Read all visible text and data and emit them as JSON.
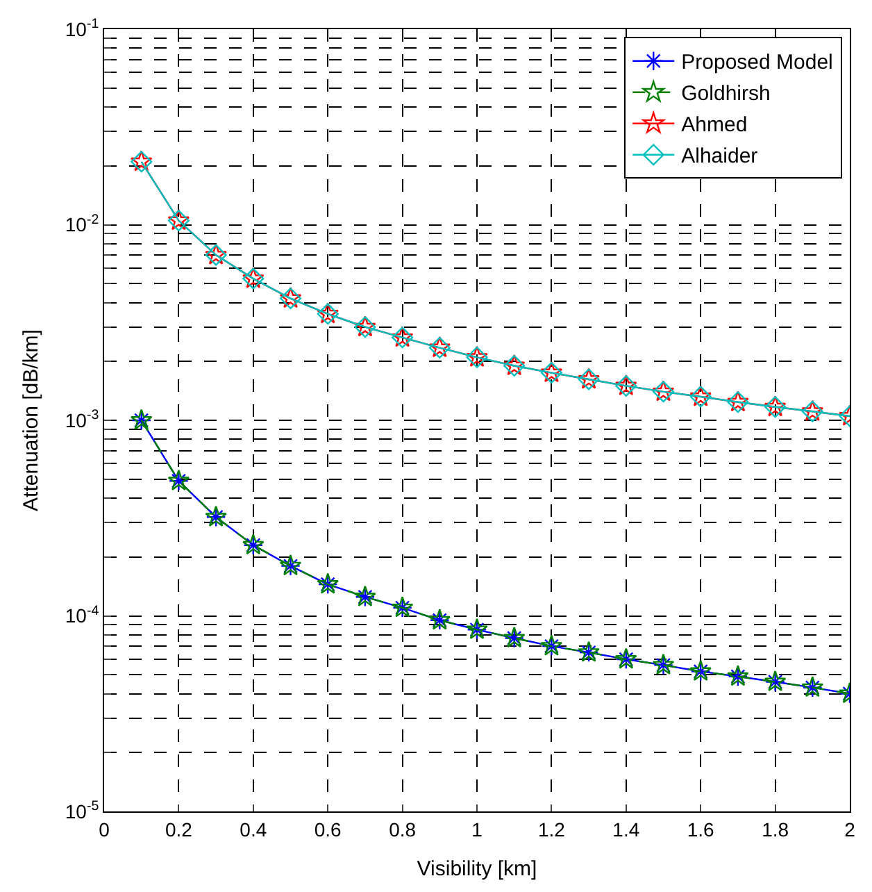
{
  "chart_data": {
    "type": "line",
    "xlabel": "Visibility [km]",
    "ylabel": "Attenuation [dB/km]",
    "log": "y",
    "x": [
      0.1,
      0.2,
      0.3,
      0.4,
      0.5,
      0.6,
      0.7,
      0.8,
      0.9,
      1.0,
      1.1,
      1.2,
      1.3,
      1.4,
      1.5,
      1.6,
      1.7,
      1.8,
      1.9,
      2.0
    ],
    "series": [
      {
        "name": "Proposed Model",
        "color": "#0000ff",
        "marker": "cross",
        "line_style": "solid",
        "values": [
          0.001,
          0.00049,
          0.00032,
          0.00023,
          0.00018,
          0.000145,
          0.000125,
          0.00011,
          9.5e-05,
          8.5e-05,
          7.7e-05,
          7e-05,
          6.5e-05,
          6e-05,
          5.6e-05,
          5.2e-05,
          4.9e-05,
          4.6e-05,
          4.3e-05,
          4e-05
        ]
      },
      {
        "name": "Goldhirsh",
        "color": "#008000",
        "marker": "star",
        "line_style": "dashed",
        "values": [
          0.001,
          0.00049,
          0.00032,
          0.00023,
          0.00018,
          0.000145,
          0.000125,
          0.00011,
          9.5e-05,
          8.5e-05,
          7.7e-05,
          7e-05,
          6.5e-05,
          6e-05,
          5.6e-05,
          5.2e-05,
          4.9e-05,
          4.6e-05,
          4.3e-05,
          4e-05
        ]
      },
      {
        "name": "Ahmed",
        "color": "#ff0000",
        "marker": "star",
        "line_style": "solid",
        "values": [
          0.021,
          0.0105,
          0.007,
          0.0053,
          0.0042,
          0.0035,
          0.003,
          0.00265,
          0.00235,
          0.0021,
          0.0019,
          0.00175,
          0.00162,
          0.0015,
          0.0014,
          0.00132,
          0.00124,
          0.00117,
          0.00111,
          0.00105
        ]
      },
      {
        "name": "Alhaider",
        "color": "#00bfbf",
        "marker": "diamond",
        "line_style": "solid",
        "values": [
          0.021,
          0.0105,
          0.007,
          0.0053,
          0.0042,
          0.0035,
          0.003,
          0.00265,
          0.00235,
          0.0021,
          0.0019,
          0.00175,
          0.00162,
          0.0015,
          0.0014,
          0.00132,
          0.00124,
          0.00117,
          0.00111,
          0.00105
        ]
      }
    ],
    "xlim": [
      0,
      2
    ],
    "xticks": [
      0,
      0.2,
      0.4,
      0.6,
      0.8,
      1,
      1.2,
      1.4,
      1.6,
      1.8,
      2
    ],
    "ylim": [
      1e-05,
      0.1
    ],
    "yticks": [
      {
        "value": 1e-05,
        "label": "10$^{-5}$"
      },
      {
        "value": 2e-05,
        "label": null
      },
      {
        "value": 3e-05,
        "label": null
      },
      {
        "value": 4e-05,
        "label": null
      },
      {
        "value": 5e-05,
        "label": null
      },
      {
        "value": 6e-05,
        "label": null
      },
      {
        "value": 7e-05,
        "label": null
      },
      {
        "value": 8e-05,
        "label": null
      },
      {
        "value": 9e-05,
        "label": null
      },
      {
        "value": 0.0001,
        "label": "10$^{-4}$"
      },
      {
        "value": 0.0002,
        "label": null
      },
      {
        "value": 0.0003,
        "label": null
      },
      {
        "value": 0.0004,
        "label": null
      },
      {
        "value": 0.0005,
        "label": null
      },
      {
        "value": 0.0006,
        "label": null
      },
      {
        "value": 0.0007,
        "label": null
      },
      {
        "value": 0.0008,
        "label": null
      },
      {
        "value": 0.0009,
        "label": null
      },
      {
        "value": 0.001,
        "label": "10$^{-3}$"
      },
      {
        "value": 0.002,
        "label": null
      },
      {
        "value": 0.003,
        "label": null
      },
      {
        "value": 0.004,
        "label": null
      },
      {
        "value": 0.005,
        "label": null
      },
      {
        "value": 0.006,
        "label": null
      },
      {
        "value": 0.007,
        "label": null
      },
      {
        "value": 0.008,
        "label": null
      },
      {
        "value": 0.009,
        "label": null
      },
      {
        "value": 0.01,
        "label": "10$^{-2}$"
      },
      {
        "value": 0.02,
        "label": null
      },
      {
        "value": 0.03,
        "label": null
      },
      {
        "value": 0.04,
        "label": null
      },
      {
        "value": 0.05,
        "label": null
      },
      {
        "value": 0.06,
        "label": null
      },
      {
        "value": 0.07,
        "label": null
      },
      {
        "value": 0.08,
        "label": null
      },
      {
        "value": 0.09,
        "label": null
      },
      {
        "value": 0.1,
        "label": "10$^{-1}$"
      }
    ],
    "grid": true,
    "legend": "top right"
  }
}
